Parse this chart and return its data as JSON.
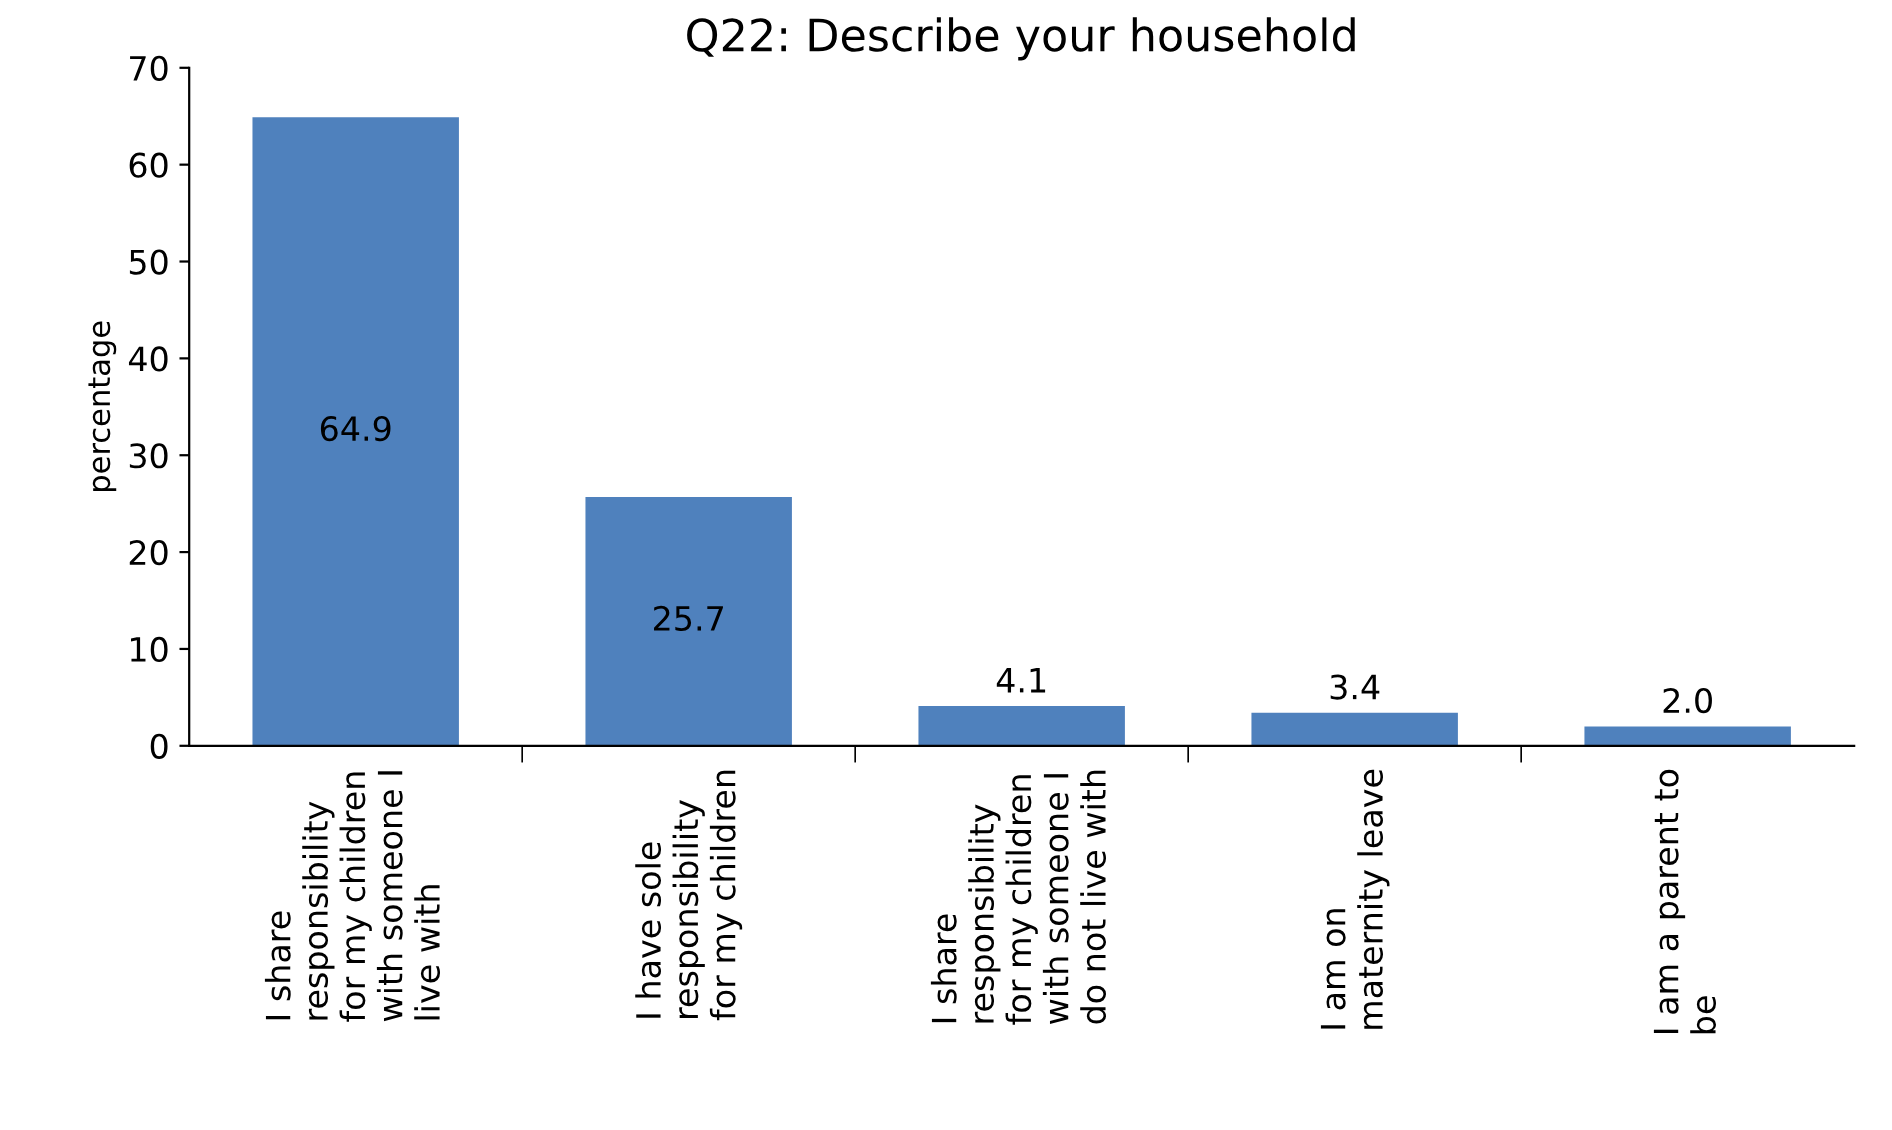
{
  "chart_data": {
    "type": "bar",
    "title": "Q22: Describe your household",
    "ylabel": "percentage",
    "categories": [
      "I share\nresponsibility\nfor my children\nwith someone I\nlive with",
      "I have sole\nresponsibility\nfor my children",
      "I share\nresponsibility\nfor my children\nwith someone I\ndo not live with",
      "I am on\nmaternity leave",
      "I am a parent to\nbe"
    ],
    "values": [
      64.9,
      25.7,
      4.1,
      3.4,
      2.0
    ],
    "value_labels": [
      "64.9",
      "25.7",
      "4.1",
      "3.4",
      "2.0"
    ],
    "color": "#4f81bd",
    "ylim": [
      0,
      70
    ],
    "yticks": [
      0,
      10,
      20,
      30,
      40,
      50,
      60,
      70
    ],
    "grid": false,
    "legend": false
  }
}
